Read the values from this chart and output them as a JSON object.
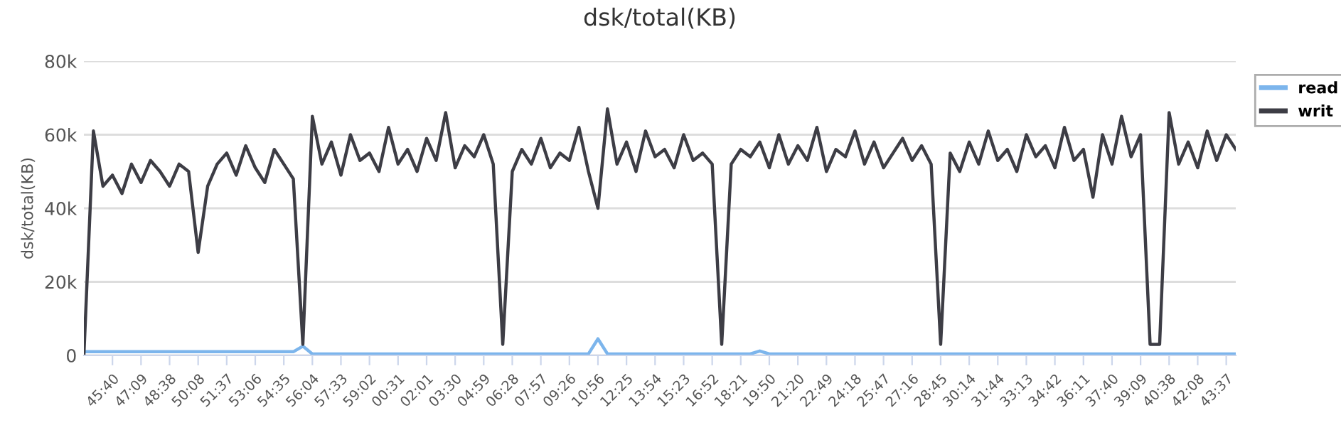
{
  "chart_data": {
    "type": "line",
    "title": "dsk/total(KB)",
    "ylabel": "dsk/total(KB)",
    "categories": [
      null,
      null,
      null,
      "45:40",
      null,
      null,
      "47:09",
      null,
      null,
      "48:38",
      null,
      null,
      "50:08",
      null,
      null,
      "51:37",
      null,
      null,
      "53:06",
      null,
      null,
      "54:35",
      null,
      null,
      "56:04",
      null,
      null,
      "57:33",
      null,
      null,
      "59:02",
      null,
      null,
      "00:31",
      null,
      null,
      "02:01",
      null,
      null,
      "03:30",
      null,
      null,
      "04:59",
      null,
      null,
      "06:28",
      null,
      null,
      "07:57",
      null,
      null,
      "09:26",
      null,
      null,
      "10:56",
      null,
      null,
      "12:25",
      null,
      null,
      "13:54",
      null,
      null,
      "15:23",
      null,
      null,
      "16:52",
      null,
      null,
      "18:21",
      null,
      null,
      "19:50",
      null,
      null,
      "21:20",
      null,
      null,
      "22:49",
      null,
      null,
      "24:18",
      null,
      null,
      "25:47",
      null,
      null,
      "27:16",
      null,
      null,
      "28:45",
      null,
      null,
      "30:14",
      null,
      null,
      "31:44",
      null,
      null,
      "33:13",
      null,
      null,
      "34:42",
      null,
      null,
      "36:11",
      null,
      null,
      "37:40",
      null,
      null,
      "39:09",
      null,
      null,
      "40:38",
      null,
      null,
      "42:08",
      null,
      null,
      "43:37",
      null
    ],
    "series": [
      {
        "name": "read",
        "color": "#7cb5ec",
        "values": [
          1000,
          1000,
          1000,
          1000,
          1000,
          1000,
          1000,
          1000,
          1000,
          1000,
          1000,
          1000,
          1000,
          1000,
          1000,
          1000,
          1000,
          1000,
          1000,
          1000,
          1000,
          1000,
          1000,
          2500,
          400,
          400,
          400,
          400,
          400,
          400,
          400,
          400,
          400,
          400,
          400,
          400,
          400,
          400,
          400,
          400,
          400,
          400,
          400,
          400,
          400,
          400,
          400,
          400,
          400,
          400,
          400,
          400,
          400,
          400,
          4500,
          400,
          400,
          400,
          400,
          400,
          400,
          400,
          400,
          400,
          400,
          400,
          400,
          400,
          400,
          400,
          400,
          1200,
          400,
          400,
          400,
          400,
          400,
          400,
          400,
          400,
          400,
          400,
          400,
          400,
          400,
          400,
          400,
          400,
          400,
          400,
          400,
          400,
          400,
          400,
          400,
          400,
          400,
          400,
          400,
          400,
          400,
          400,
          400,
          400,
          400,
          400,
          400,
          400,
          400,
          400,
          400,
          400,
          400,
          400,
          400,
          400,
          400,
          400,
          400,
          400,
          400,
          400
        ]
      },
      {
        "name": "writ",
        "color": "#3d3d45",
        "values": [
          0,
          61000,
          46000,
          49000,
          44000,
          52000,
          47000,
          53000,
          50000,
          46000,
          52000,
          50000,
          28000,
          46000,
          52000,
          55000,
          49000,
          57000,
          51000,
          47000,
          56000,
          52000,
          48000,
          3000,
          65000,
          52000,
          58000,
          49000,
          60000,
          53000,
          55000,
          50000,
          62000,
          52000,
          56000,
          50000,
          59000,
          53000,
          66000,
          51000,
          57000,
          54000,
          60000,
          52000,
          3000,
          50000,
          56000,
          52000,
          59000,
          51000,
          55000,
          53000,
          62000,
          50000,
          40000,
          67000,
          52000,
          58000,
          50000,
          61000,
          54000,
          56000,
          51000,
          60000,
          53000,
          55000,
          52000,
          3000,
          52000,
          56000,
          54000,
          58000,
          51000,
          60000,
          52000,
          57000,
          53000,
          62000,
          50000,
          56000,
          54000,
          61000,
          52000,
          58000,
          51000,
          55000,
          59000,
          53000,
          57000,
          52000,
          3000,
          55000,
          50000,
          58000,
          52000,
          61000,
          53000,
          56000,
          50000,
          60000,
          54000,
          57000,
          51000,
          62000,
          53000,
          56000,
          43000,
          60000,
          52000,
          65000,
          54000,
          60000,
          3000,
          3000,
          66000,
          52000,
          58000,
          51000,
          61000,
          53000,
          60000,
          56000
        ]
      }
    ],
    "ylim": [
      0,
      80000
    ],
    "yticks": [
      {
        "value": 0,
        "label": "0"
      },
      {
        "value": 20000,
        "label": "20k"
      },
      {
        "value": 40000,
        "label": "40k"
      },
      {
        "value": 60000,
        "label": "60k"
      },
      {
        "value": 80000,
        "label": "80k"
      }
    ],
    "grid": "y",
    "legend": "top right",
    "marker": "none",
    "line_style": "solid"
  }
}
